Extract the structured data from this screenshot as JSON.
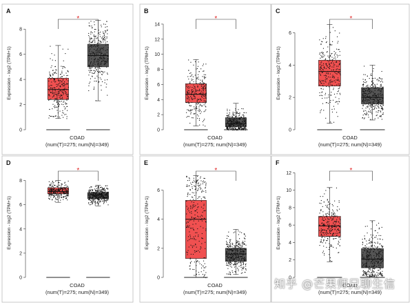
{
  "chart_data": [
    {
      "type": "box",
      "panel": "A",
      "title": "",
      "ylabel": "Expression - log2 (TPM+1)",
      "ylim": [
        0,
        9
      ],
      "yticks": [
        0,
        2,
        4,
        6,
        8
      ],
      "xlabel": "COAD",
      "xsub": "(num(T)=275; num(N)=349)",
      "significance": "*",
      "series": [
        {
          "name": "",
          "color": "#f05050",
          "median": 3.2,
          "q1": 2.4,
          "q3": 4.1,
          "whisker_low": 0.9,
          "whisker_high": 6.7,
          "points": 275
        },
        {
          "name": "",
          "color": "#555555",
          "median": 5.9,
          "q1": 5.0,
          "q3": 6.8,
          "whisker_low": 2.3,
          "whisker_high": 8.7,
          "points": 349
        }
      ]
    },
    {
      "type": "box",
      "panel": "B",
      "title": "",
      "ylabel": "Expression - log2 (TPM+1)",
      "ylim": [
        0,
        15
      ],
      "yticks": [
        0,
        2,
        4,
        6,
        8,
        10,
        12,
        14
      ],
      "xlabel": "COAD",
      "xsub": "(num(T)=275; num(N)=349)",
      "significance": "*",
      "series": [
        {
          "name": "",
          "color": "#f05050",
          "median": 4.7,
          "q1": 3.6,
          "q3": 6.1,
          "whisker_low": 0.5,
          "whisker_high": 9.3,
          "points": 275
        },
        {
          "name": "",
          "color": "#555555",
          "median": 0.8,
          "q1": 0.4,
          "q3": 1.6,
          "whisker_low": 0.0,
          "whisker_high": 3.5,
          "points": 349
        }
      ]
    },
    {
      "type": "box",
      "panel": "C",
      "title": "",
      "ylabel": "Expression - log2 (TPM+1)",
      "ylim": [
        0,
        7
      ],
      "yticks": [
        0,
        2,
        4,
        6
      ],
      "xlabel": "COAD",
      "xsub": "(num(T)=275; num(N)=349)",
      "significance": "*",
      "series": [
        {
          "name": "",
          "color": "#f05050",
          "median": 3.6,
          "q1": 2.7,
          "q3": 4.3,
          "whisker_low": 0.4,
          "whisker_high": 6.5,
          "points": 275
        },
        {
          "name": "",
          "color": "#555555",
          "median": 2.0,
          "q1": 1.6,
          "q3": 2.6,
          "whisker_low": 0.6,
          "whisker_high": 4.0,
          "points": 349
        }
      ]
    },
    {
      "type": "box",
      "panel": "D",
      "title": "",
      "ylabel": "Expression - log2 (TPM+1)",
      "ylim": [
        0,
        9
      ],
      "yticks": [
        0,
        2,
        4,
        6,
        8
      ],
      "xlabel": "COAD",
      "xsub": "(num(T)=275; num(N)=349)",
      "significance": "*",
      "series": [
        {
          "name": "",
          "color": "#f05050",
          "median": 7.1,
          "q1": 6.9,
          "q3": 7.4,
          "whisker_low": 6.2,
          "whisker_high": 8.0,
          "points": 275
        },
        {
          "name": "",
          "color": "#555555",
          "median": 6.8,
          "q1": 6.5,
          "q3": 7.0,
          "whisker_low": 5.9,
          "whisker_high": 7.6,
          "points": 349
        }
      ]
    },
    {
      "type": "box",
      "panel": "E",
      "title": "",
      "ylabel": "Expression - log2 (TPM+1)",
      "ylim": [
        0,
        7.5
      ],
      "yticks": [
        0,
        2,
        4,
        6
      ],
      "xlabel": "COAD",
      "xsub": "(num(T)=275; num(N)=349)",
      "significance": "*",
      "series": [
        {
          "name": "",
          "color": "#f05050",
          "median": 4.0,
          "q1": 1.3,
          "q3": 5.3,
          "whisker_low": 0.0,
          "whisker_high": 7.0,
          "points": 275
        },
        {
          "name": "",
          "color": "#555555",
          "median": 1.6,
          "q1": 1.1,
          "q3": 2.0,
          "whisker_low": 0.2,
          "whisker_high": 3.3,
          "points": 349
        }
      ]
    },
    {
      "type": "box",
      "panel": "F",
      "title": "",
      "ylabel": "Expression - log2 (TPM+1)",
      "ylim": [
        0,
        12.5
      ],
      "yticks": [
        0,
        2,
        4,
        6,
        8,
        10,
        12
      ],
      "xlabel": "COAD",
      "xsub": "(num(T)=275; num(N)=349)",
      "significance": "*",
      "series": [
        {
          "name": "",
          "color": "#f05050",
          "median": 5.9,
          "q1": 4.7,
          "q3": 7.0,
          "whisker_low": 1.8,
          "whisker_high": 10.3,
          "points": 275
        },
        {
          "name": "",
          "color": "#555555",
          "median": 2.1,
          "q1": 1.1,
          "q3": 3.3,
          "whisker_low": 0.1,
          "whisker_high": 6.5,
          "points": 349
        }
      ]
    }
  ],
  "watermark": "知乎 @芒果师兄聊生信"
}
